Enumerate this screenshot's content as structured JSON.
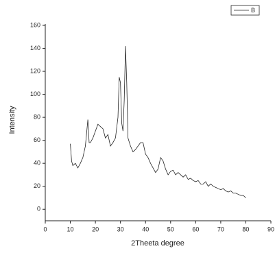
{
  "chart_data": {
    "type": "line",
    "xlabel": "2Theeta degree",
    "ylabel": "Intensity",
    "xlim": [
      0,
      90
    ],
    "xticks": [
      0,
      10,
      20,
      30,
      40,
      50,
      60,
      70,
      80,
      90
    ],
    "ylim": [
      -10,
      160
    ],
    "yticks": [
      0,
      20,
      40,
      60,
      80,
      100,
      120,
      140,
      160
    ],
    "legend": "top-right",
    "x": [
      10,
      10.5,
      11,
      12,
      13,
      14,
      15,
      16,
      17,
      17.5,
      18,
      19,
      20,
      21,
      22,
      23,
      24,
      25,
      26,
      27,
      28,
      29,
      29.5,
      30,
      30.5,
      31,
      31.5,
      32,
      32.5,
      33,
      34,
      35,
      36,
      37,
      38,
      39,
      40,
      41,
      42,
      43,
      44,
      45,
      46,
      47,
      48,
      49,
      50,
      51,
      52,
      53,
      54,
      55,
      56,
      57,
      58,
      59,
      60,
      61,
      62,
      63,
      64,
      65,
      66,
      67,
      68,
      69,
      70,
      71,
      72,
      73,
      74,
      75,
      76,
      77,
      78,
      79,
      80
    ],
    "series": [
      {
        "name": "B",
        "color": "#222222",
        "values": [
          57,
          42,
          38,
          40,
          36,
          40,
          45,
          55,
          78,
          58,
          58,
          62,
          68,
          74,
          72,
          70,
          62,
          65,
          55,
          58,
          62,
          80,
          115,
          110,
          75,
          68,
          95,
          142,
          110,
          62,
          55,
          50,
          52,
          55,
          58,
          58,
          48,
          45,
          40,
          36,
          32,
          35,
          45,
          42,
          35,
          30,
          33,
          34,
          30,
          32,
          30,
          28,
          30,
          26,
          27,
          25,
          24,
          25,
          22,
          22,
          24,
          20,
          22,
          20,
          19,
          18,
          17,
          18,
          16,
          15,
          16,
          14,
          14,
          13,
          12,
          12,
          10
        ]
      }
    ]
  }
}
